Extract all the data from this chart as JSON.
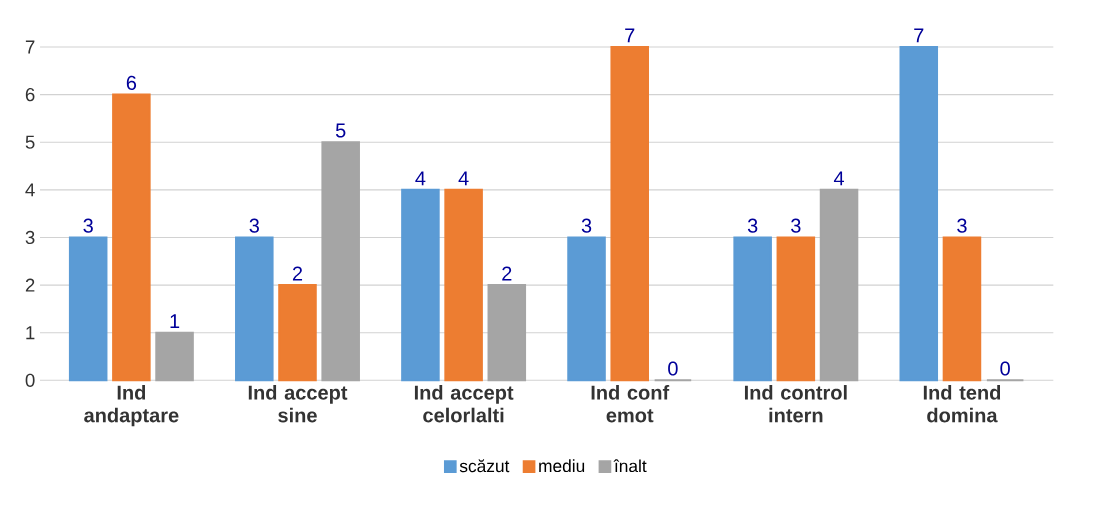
{
  "chart_data": {
    "type": "bar",
    "categories": [
      "Ind andaptare",
      "Ind accept sine",
      "Ind accept celorlalti",
      "Ind conf emot",
      "Ind control intern",
      "Ind tend domina"
    ],
    "series": [
      {
        "name": "scăzut",
        "color": "#5b9bd5",
        "values": [
          3,
          3,
          4,
          3,
          3,
          7
        ]
      },
      {
        "name": "mediu",
        "color": "#ed7d31",
        "values": [
          6,
          2,
          4,
          7,
          3,
          3
        ]
      },
      {
        "name": "înalt",
        "color": "#a5a5a5",
        "values": [
          1,
          5,
          2,
          0,
          4,
          0
        ]
      }
    ],
    "ylim": [
      0,
      7
    ],
    "yticks": [
      0,
      1,
      2,
      3,
      4,
      5,
      6,
      7
    ],
    "grid": "y",
    "legend": "bottom",
    "data_labels": true
  }
}
